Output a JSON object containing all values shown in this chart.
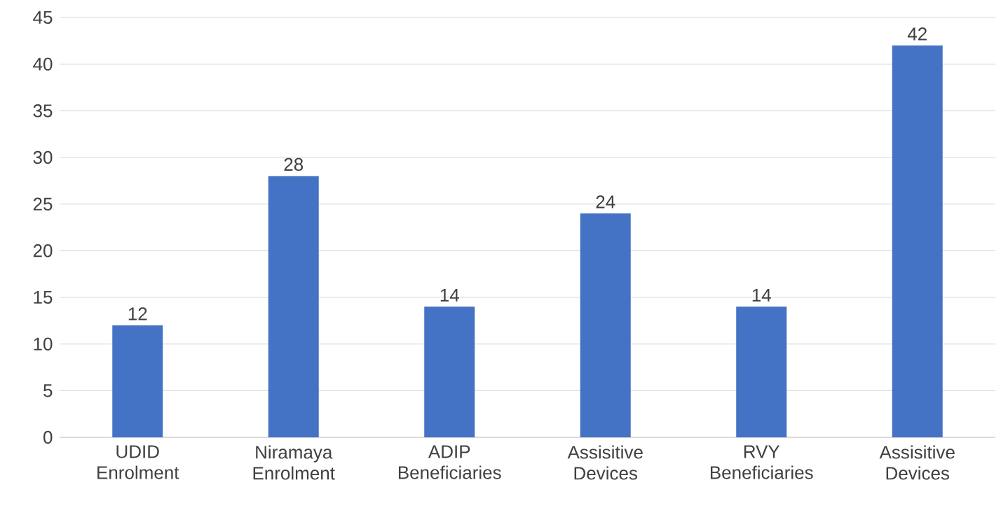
{
  "chart_data": {
    "type": "bar",
    "categories": [
      "UDID Enrolment",
      "Niramaya Enrolment",
      "ADIP Beneficiaries",
      "Assisitive Devices",
      "RVY Beneficiaries",
      "Assisitive Devices"
    ],
    "values": [
      12,
      28,
      14,
      24,
      14,
      42
    ],
    "color": "#4472c4",
    "ylim": [
      0,
      45
    ],
    "yticks": [
      0,
      5,
      10,
      15,
      20,
      25,
      30,
      35,
      40,
      45
    ],
    "grid": "y",
    "data_labels": true
  }
}
